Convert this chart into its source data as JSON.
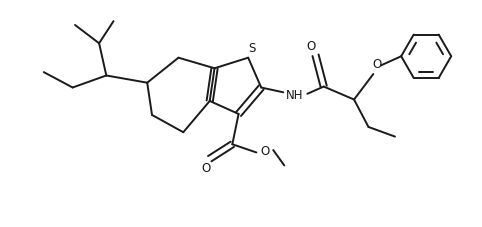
{
  "bg_color": "#ffffff",
  "line_color": "#1a1a1a",
  "line_width": 1.4,
  "figsize": [
    4.82,
    2.28
  ],
  "dpi": 100,
  "xlim": [
    0,
    10
  ],
  "ylim": [
    0,
    4.74
  ]
}
